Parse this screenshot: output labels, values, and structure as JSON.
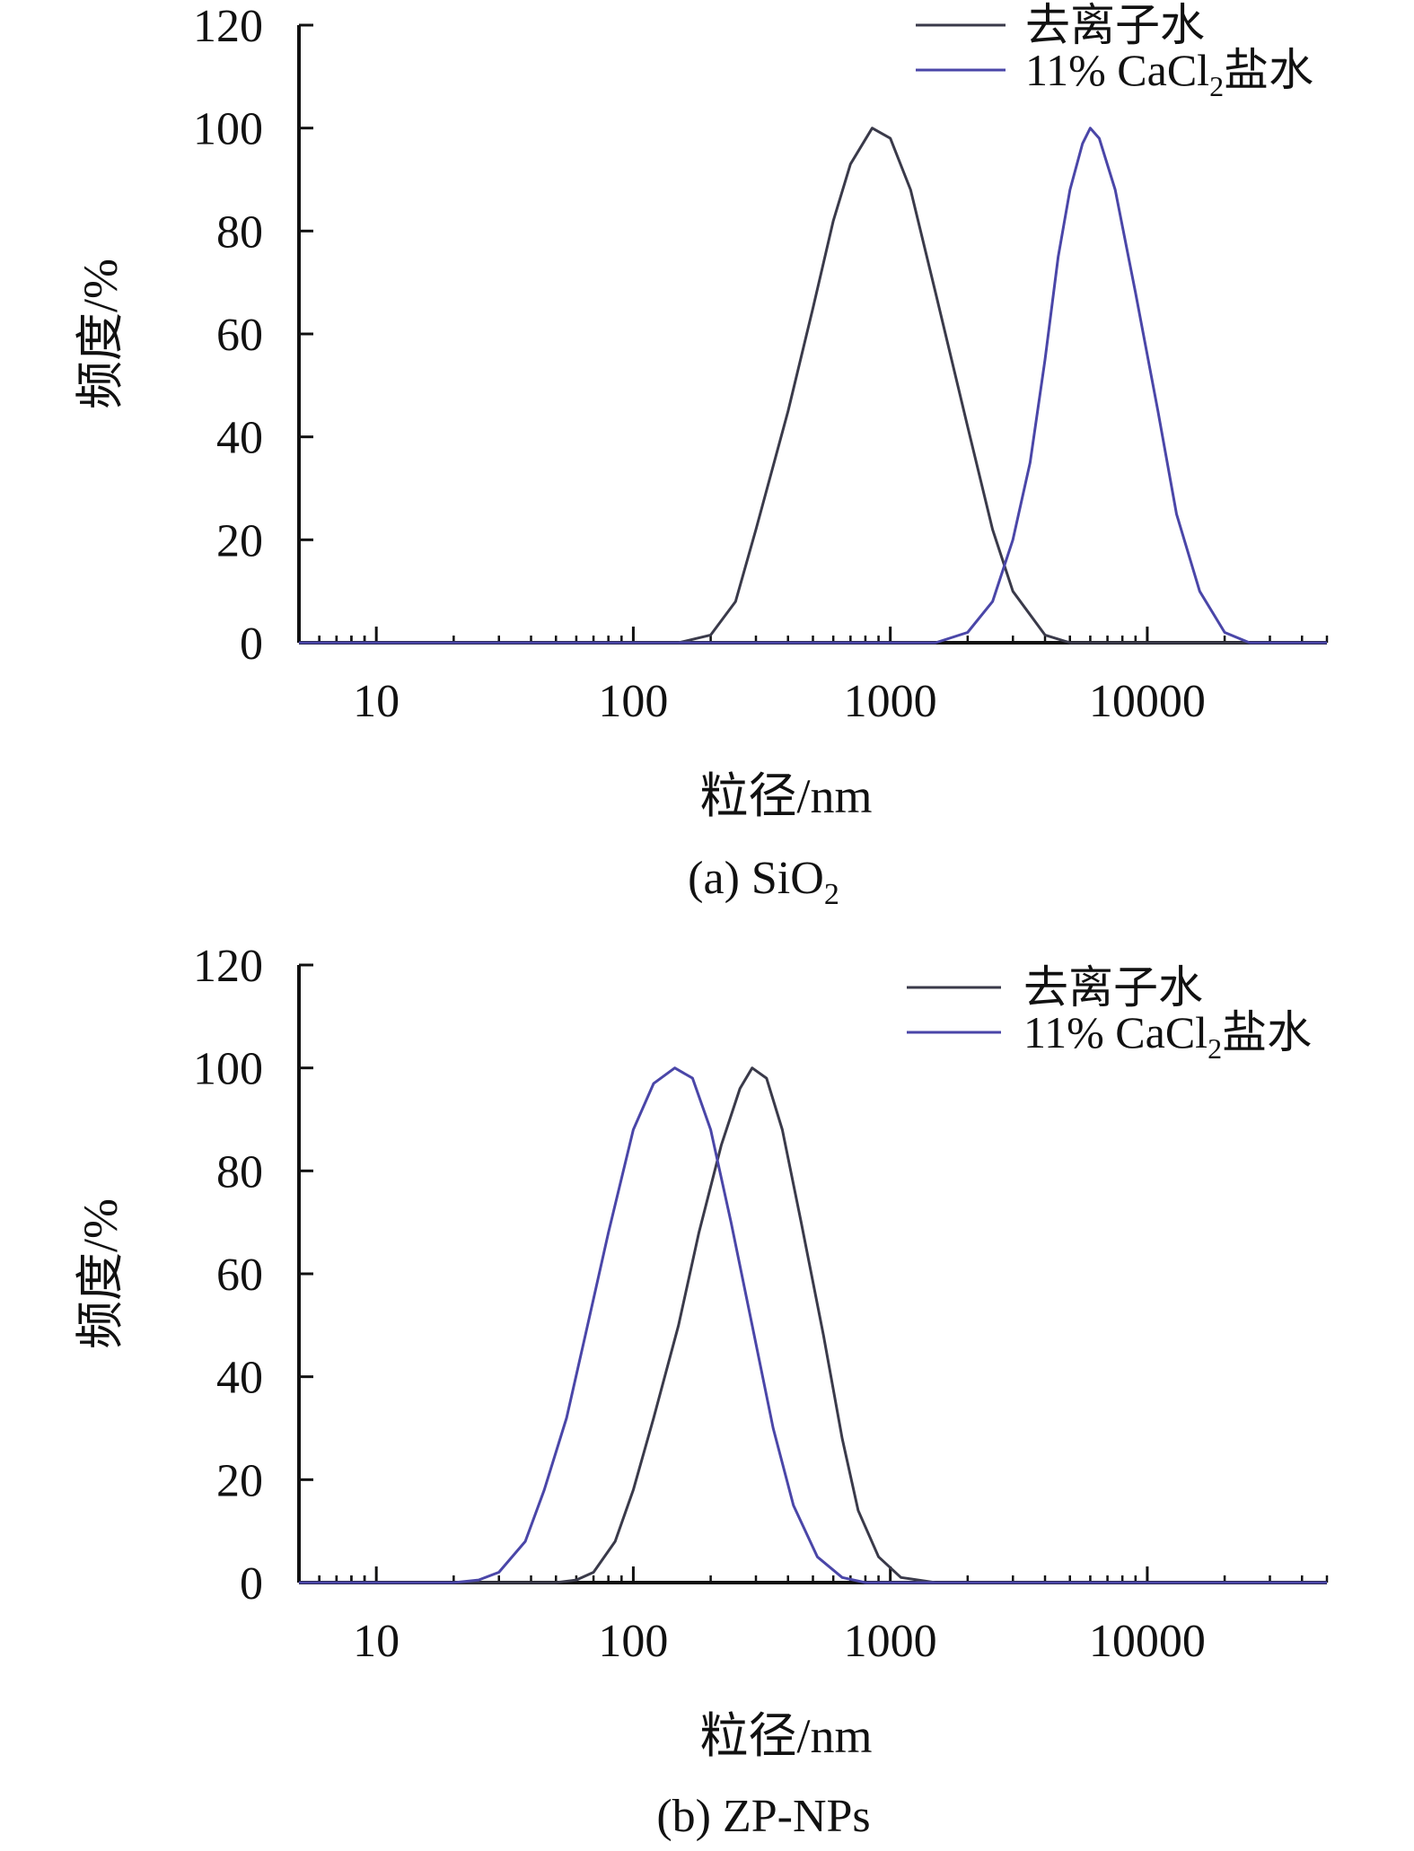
{
  "chart_data": [
    {
      "type": "line",
      "title": "",
      "caption": "(a) SiO",
      "caption_sub": "2",
      "xlabel": "粒径/nm",
      "ylabel": "频度/%",
      "x_scale": "log",
      "xlim": [
        5,
        50000
      ],
      "ylim": [
        0,
        120
      ],
      "x_ticks": [
        10,
        100,
        1000,
        10000
      ],
      "x_tick_labels": [
        "10",
        "100",
        "1000",
        "10000"
      ],
      "y_ticks": [
        0,
        20,
        40,
        60,
        80,
        100,
        120
      ],
      "y_tick_labels": [
        "0",
        "20",
        "40",
        "60",
        "80",
        "100",
        "120"
      ],
      "legend_position": "top-right",
      "series": [
        {
          "name": "去离子水",
          "legend_label": "去离子水",
          "color": "#3a3a4a",
          "points": [
            [
              5,
              0
            ],
            [
              150,
              0
            ],
            [
              200,
              1.5
            ],
            [
              250,
              8
            ],
            [
              300,
              22
            ],
            [
              400,
              45
            ],
            [
              500,
              65
            ],
            [
              600,
              82
            ],
            [
              700,
              93
            ],
            [
              850,
              100
            ],
            [
              1000,
              98
            ],
            [
              1200,
              88
            ],
            [
              1500,
              68
            ],
            [
              2000,
              42
            ],
            [
              2500,
              22
            ],
            [
              3000,
              10
            ],
            [
              4000,
              1.5
            ],
            [
              5000,
              0
            ],
            [
              50000,
              0
            ]
          ]
        },
        {
          "name": "11% CaCl2盐水",
          "legend_label": "11% CaCl",
          "legend_sub": "2",
          "legend_suffix": "盐水",
          "color": "#4a46a8",
          "points": [
            [
              5,
              0
            ],
            [
              1500,
              0
            ],
            [
              2000,
              2
            ],
            [
              2500,
              8
            ],
            [
              3000,
              20
            ],
            [
              3500,
              35
            ],
            [
              4000,
              55
            ],
            [
              4500,
              75
            ],
            [
              5000,
              88
            ],
            [
              5600,
              97
            ],
            [
              6000,
              100
            ],
            [
              6500,
              98
            ],
            [
              7500,
              88
            ],
            [
              9000,
              68
            ],
            [
              11000,
              45
            ],
            [
              13000,
              25
            ],
            [
              16000,
              10
            ],
            [
              20000,
              2
            ],
            [
              25000,
              0
            ],
            [
              50000,
              0
            ]
          ]
        }
      ]
    },
    {
      "type": "line",
      "title": "",
      "caption": "(b) ZP-NPs",
      "caption_sub": "",
      "xlabel": "粒径/nm",
      "ylabel": "频度/%",
      "x_scale": "log",
      "xlim": [
        5,
        50000
      ],
      "ylim": [
        0,
        120
      ],
      "x_ticks": [
        10,
        100,
        1000,
        10000
      ],
      "x_tick_labels": [
        "10",
        "100",
        "1000",
        "10000"
      ],
      "y_ticks": [
        0,
        20,
        40,
        60,
        80,
        100,
        120
      ],
      "y_tick_labels": [
        "0",
        "20",
        "40",
        "60",
        "80",
        "100",
        "120"
      ],
      "legend_position": "top-right",
      "series": [
        {
          "name": "去离子水",
          "legend_label": "去离子水",
          "color": "#3a3a4a",
          "points": [
            [
              5,
              0
            ],
            [
              50,
              0
            ],
            [
              60,
              0.5
            ],
            [
              70,
              2
            ],
            [
              85,
              8
            ],
            [
              100,
              18
            ],
            [
              120,
              32
            ],
            [
              150,
              50
            ],
            [
              180,
              68
            ],
            [
              220,
              85
            ],
            [
              260,
              96
            ],
            [
              290,
              100
            ],
            [
              330,
              98
            ],
            [
              380,
              88
            ],
            [
              450,
              70
            ],
            [
              550,
              48
            ],
            [
              650,
              28
            ],
            [
              750,
              14
            ],
            [
              900,
              5
            ],
            [
              1100,
              1
            ],
            [
              1500,
              0
            ],
            [
              50000,
              0
            ]
          ]
        },
        {
          "name": "11% CaCl2盐水",
          "legend_label": "11% CaCl",
          "legend_sub": "2",
          "legend_suffix": "盐水",
          "color": "#4a46a8",
          "points": [
            [
              5,
              0
            ],
            [
              20,
              0
            ],
            [
              25,
              0.5
            ],
            [
              30,
              2
            ],
            [
              38,
              8
            ],
            [
              45,
              18
            ],
            [
              55,
              32
            ],
            [
              65,
              48
            ],
            [
              80,
              68
            ],
            [
              100,
              88
            ],
            [
              120,
              97
            ],
            [
              145,
              100
            ],
            [
              170,
              98
            ],
            [
              200,
              88
            ],
            [
              240,
              70
            ],
            [
              290,
              50
            ],
            [
              350,
              30
            ],
            [
              420,
              15
            ],
            [
              520,
              5
            ],
            [
              650,
              1
            ],
            [
              800,
              0
            ],
            [
              50000,
              0
            ]
          ]
        }
      ]
    }
  ]
}
